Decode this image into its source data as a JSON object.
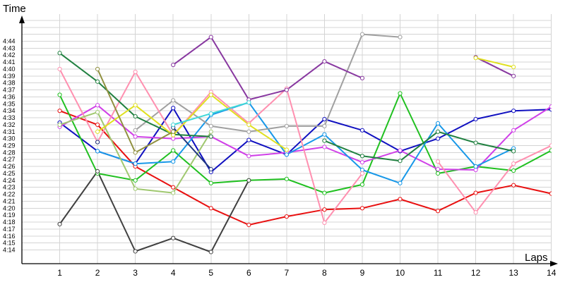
{
  "chart_data": {
    "type": "line",
    "title": "",
    "xlabel": "Laps",
    "ylabel": "Time",
    "x": [
      1,
      2,
      3,
      4,
      5,
      6,
      7,
      8,
      9,
      10,
      11,
      12,
      13,
      14
    ],
    "xticks": [
      "1",
      "2",
      "3",
      "4",
      "5",
      "6",
      "7",
      "8",
      "9",
      "10",
      "11",
      "12",
      "13",
      "14"
    ],
    "yticks": [
      "4:14",
      "4:15",
      "4:16",
      "4:17",
      "4:18",
      "4:19",
      "4:20",
      "4:21",
      "4:22",
      "4:23",
      "4:24",
      "4:25",
      "4:26",
      "4:27",
      "4:28",
      "4:29",
      "4:30",
      "4:31",
      "4:32",
      "4:33",
      "4:34",
      "4:35",
      "4:36",
      "4:37",
      "4:38",
      "4:39",
      "4:40",
      "4:41",
      "4:42",
      "4:43",
      "4:44"
    ],
    "ylim_seconds": [
      253,
      291
    ],
    "x_range": [
      0,
      14.25
    ],
    "grid": true,
    "legend": "none",
    "series": [
      {
        "color": "#e81010",
        "values": [
          274,
          272,
          266,
          263,
          260,
          257.6,
          258.8,
          259.8,
          260,
          261.3,
          259.6,
          262.2,
          263.3,
          262.1
        ]
      },
      {
        "color": "#1010c0",
        "values": [
          272.3,
          268.2,
          266.4,
          274.4,
          265.2,
          269.8,
          267.7,
          272.8,
          271.2,
          268.2,
          270,
          272.8,
          274,
          274.2
        ]
      },
      {
        "color": "#20c020",
        "values": [
          276.3,
          265,
          264,
          268.3,
          263.6,
          264,
          264.2,
          262.2,
          263.4,
          276.5,
          265,
          266,
          265.4,
          268.3
        ]
      },
      {
        "color": "#d040e8",
        "values": [
          271.7,
          274.8,
          270.3,
          270,
          270.3,
          267.5,
          268,
          268.8,
          266.6,
          268.3,
          265.6,
          265.5,
          271.2,
          274.6
        ]
      },
      {
        "color": "#1898e8",
        "values": [
          null,
          268.2,
          266.4,
          266.7,
          273.4,
          275.2,
          267.7,
          270.6,
          265.5,
          263.6,
          272.2,
          266,
          268.6,
          null
        ]
      },
      {
        "color": "#a0a0a0",
        "values": [
          null,
          null,
          271.2,
          275.5,
          271.8,
          271,
          271.8,
          271.8,
          285,
          284.6,
          null,
          null,
          null,
          null
        ]
      },
      {
        "color": "#404040",
        "values": [
          257.7,
          265.3,
          253.8,
          255.7,
          253.7,
          264,
          null,
          null,
          null,
          null,
          null,
          null,
          null,
          null
        ]
      },
      {
        "color": "#ff90b0",
        "values": [
          280,
          269.5,
          279.6,
          270.5,
          276.7,
          272.2,
          277.2,
          257.9,
          265,
          null,
          266.7,
          259.4,
          266.4,
          269
        ]
      },
      {
        "color": "#a0c870",
        "values": [
          272,
          273.8,
          262.8,
          262.2,
          271,
          null,
          null,
          null,
          null,
          null,
          null,
          null,
          null,
          null
        ]
      },
      {
        "color": "#203880",
        "values": [
          null,
          269.5,
          null,
          271.6,
          265.6,
          null,
          null,
          null,
          null,
          null,
          null,
          null,
          null,
          null
        ]
      },
      {
        "color": "#8838a0",
        "values": [
          null,
          null,
          null,
          280.6,
          284.6,
          275.6,
          277,
          281.1,
          278.7,
          null,
          null,
          281.7,
          279,
          null
        ]
      },
      {
        "color": "#208040",
        "values": [
          282.3,
          278.2,
          273.2,
          270.6,
          270.3,
          null,
          null,
          269.7,
          267.5,
          266.8,
          271,
          269.4,
          268.2,
          null
        ]
      },
      {
        "color": "#e0e020",
        "values": [
          null,
          271,
          274.8,
          270.5,
          276.3,
          272,
          268.4,
          null,
          null,
          null,
          null,
          281.6,
          280.3,
          null
        ]
      },
      {
        "color": "#40d8d8",
        "values": [
          null,
          null,
          null,
          272,
          273.6,
          275.2,
          null,
          null,
          null,
          null,
          null,
          null,
          null,
          null
        ]
      },
      {
        "color": "#909040",
        "values": [
          null,
          280,
          268,
          271,
          null,
          null,
          null,
          null,
          null,
          null,
          null,
          null,
          null,
          null
        ]
      }
    ]
  }
}
